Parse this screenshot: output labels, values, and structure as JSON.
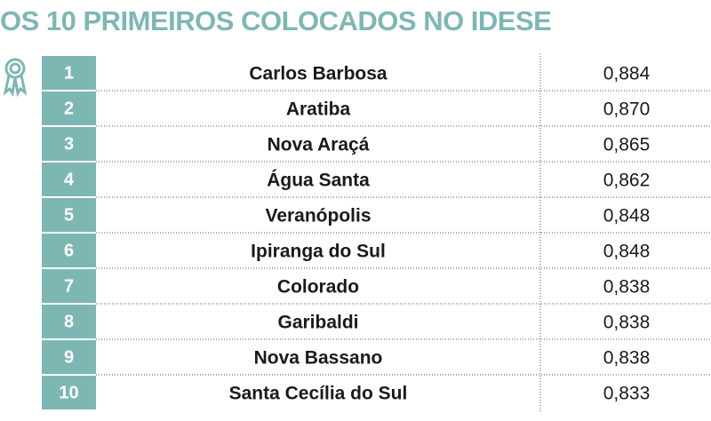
{
  "header": {
    "title": "OS 10 PRIMEIROS COLOCADOS NO IDESE"
  },
  "table": {
    "rows": [
      [
        "1",
        "Carlos Barbosa",
        "0,884"
      ],
      [
        "2",
        "Aratiba",
        "0,870"
      ],
      [
        "3",
        "Nova Araçá",
        "0,865"
      ],
      [
        "4",
        "Água Santa",
        "0,862"
      ],
      [
        "5",
        "Veranópolis",
        "0,848"
      ],
      [
        "6",
        "Ipiranga do Sul",
        "0,848"
      ],
      [
        "7",
        "Colorado",
        "0,838"
      ],
      [
        "8",
        "Garibaldi",
        "0,838"
      ],
      [
        "9",
        "Nova Bassano",
        "0,838"
      ],
      [
        "10",
        "Santa Cecília do Sul",
        "0,833"
      ]
    ]
  }
}
